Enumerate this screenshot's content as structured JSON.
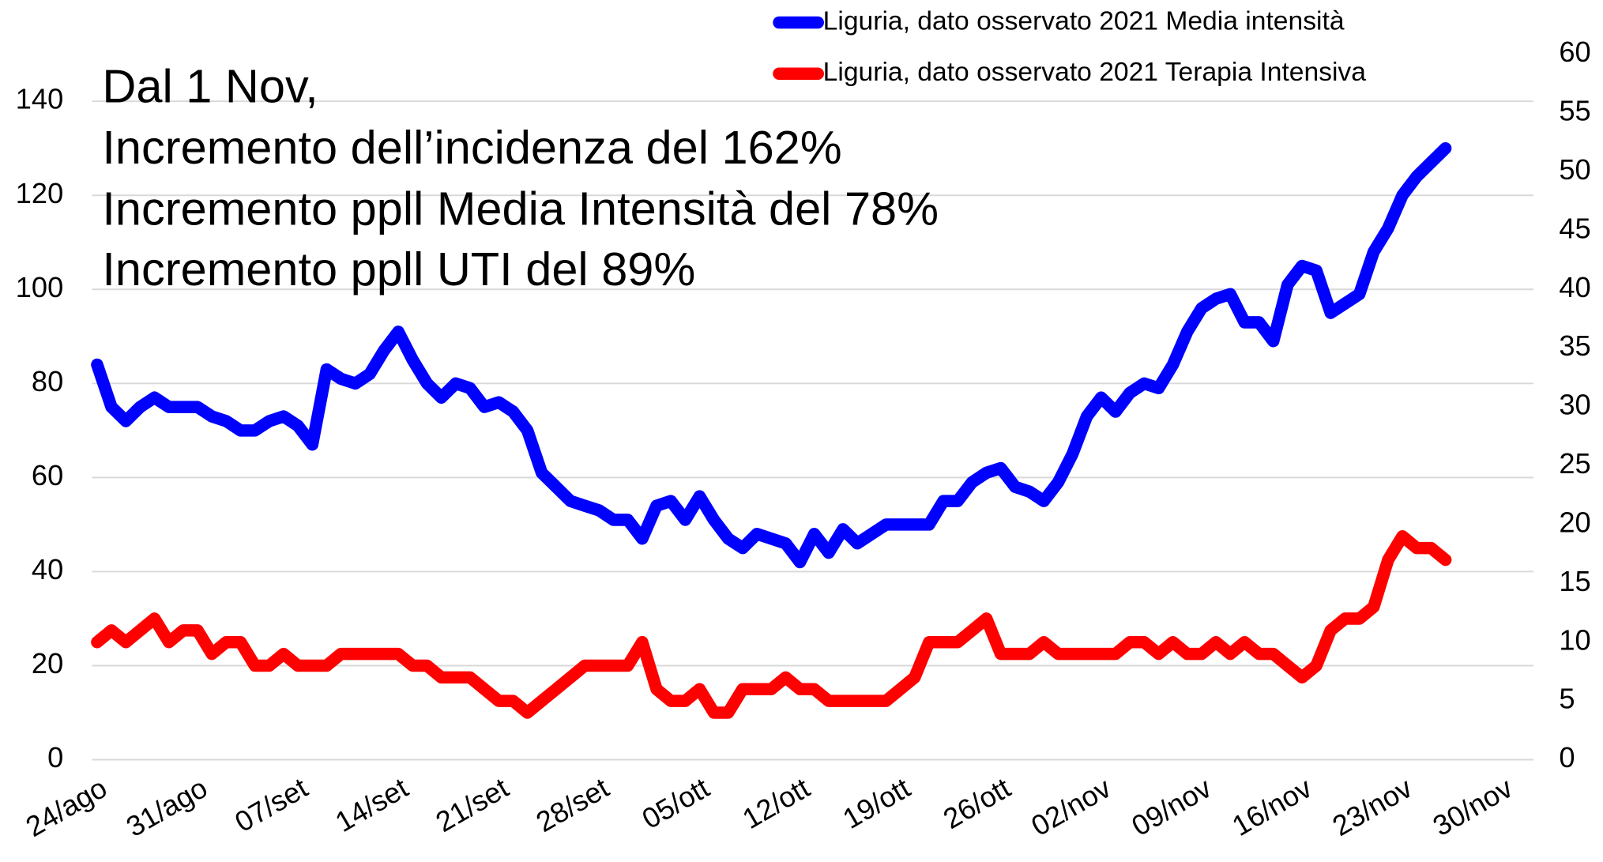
{
  "chart_data": {
    "type": "line",
    "annotations": [
      "Dal 1 Nov,",
      "Incremento dell’incidenza del 162%",
      "Incremento ppll Media Intensità del 78%",
      "Incremento ppll UTI del 89%"
    ],
    "categories": [
      "24/ago",
      null,
      null,
      null,
      null,
      null,
      null,
      "31/ago",
      null,
      null,
      null,
      null,
      null,
      null,
      "07/set",
      null,
      null,
      null,
      null,
      null,
      null,
      "14/set",
      null,
      null,
      null,
      null,
      null,
      null,
      "21/set",
      null,
      null,
      null,
      null,
      null,
      null,
      "28/set",
      null,
      null,
      null,
      null,
      null,
      null,
      "05/ott",
      null,
      null,
      null,
      null,
      null,
      null,
      "12/ott",
      null,
      null,
      null,
      null,
      null,
      null,
      "19/ott",
      null,
      null,
      null,
      null,
      null,
      null,
      "26/ott",
      null,
      null,
      null,
      null,
      null,
      null,
      "02/nov",
      null,
      null,
      null,
      null,
      null,
      null,
      "09/nov",
      null,
      null,
      null,
      null,
      null,
      null,
      "16/nov",
      null,
      null,
      null,
      null,
      null,
      null,
      "23/nov",
      null,
      null,
      null,
      null,
      null,
      null,
      "30/nov"
    ],
    "series": [
      {
        "name": "Liguria, dato osservato 2021 Media intensità",
        "color": "#0000ff",
        "axis": "y",
        "values": [
          84,
          75,
          72,
          75,
          77,
          75,
          75,
          75,
          73,
          72,
          70,
          70,
          72,
          73,
          71,
          67,
          83,
          81,
          80,
          82,
          87,
          91,
          85,
          80,
          77,
          80,
          79,
          75,
          76,
          74,
          70,
          61,
          58,
          55,
          54,
          53,
          51,
          51,
          47,
          54,
          55,
          51,
          56,
          51,
          47,
          45,
          48,
          47,
          46,
          42,
          48,
          44,
          49,
          46,
          48,
          50,
          50,
          50,
          50,
          55,
          55,
          59,
          61,
          62,
          58,
          57,
          55,
          59,
          65,
          73,
          77,
          74,
          78,
          80,
          79,
          84,
          91,
          96,
          98,
          99,
          93,
          93,
          89,
          101,
          105,
          104,
          95,
          97,
          99,
          108,
          113,
          120,
          124,
          127,
          130,
          null,
          null,
          null,
          null
        ]
      },
      {
        "name": "Liguria, dato osservato 2021 Terapia Intensiva",
        "color": "#ff0000",
        "axis": "y2",
        "values": [
          10,
          11,
          10,
          11,
          12,
          10,
          11,
          11,
          9,
          10,
          10,
          8,
          8,
          9,
          8,
          8,
          8,
          9,
          9,
          9,
          9,
          9,
          8,
          8,
          7,
          7,
          7,
          6,
          5,
          5,
          4,
          5,
          6,
          7,
          8,
          8,
          8,
          8,
          10,
          6,
          5,
          5,
          6,
          4,
          4,
          6,
          6,
          6,
          7,
          6,
          6,
          5,
          5,
          5,
          5,
          5,
          6,
          7,
          10,
          10,
          10,
          11,
          12,
          9,
          9,
          9,
          10,
          9,
          9,
          9,
          9,
          9,
          10,
          10,
          9,
          10,
          9,
          9,
          10,
          9,
          10,
          9,
          9,
          8,
          7,
          8,
          11,
          12,
          12,
          13,
          17,
          19,
          18,
          18,
          17,
          null,
          null,
          null,
          null
        ]
      }
    ],
    "ylim": [
      0,
      150
    ],
    "yticks": [
      0,
      20,
      40,
      60,
      80,
      100,
      120,
      140
    ],
    "y2lim": [
      0,
      60
    ],
    "y2ticks": [
      0,
      5,
      10,
      15,
      20,
      25,
      30,
      35,
      40,
      45,
      50,
      55,
      60
    ],
    "grid": true,
    "legend": "top-right"
  }
}
